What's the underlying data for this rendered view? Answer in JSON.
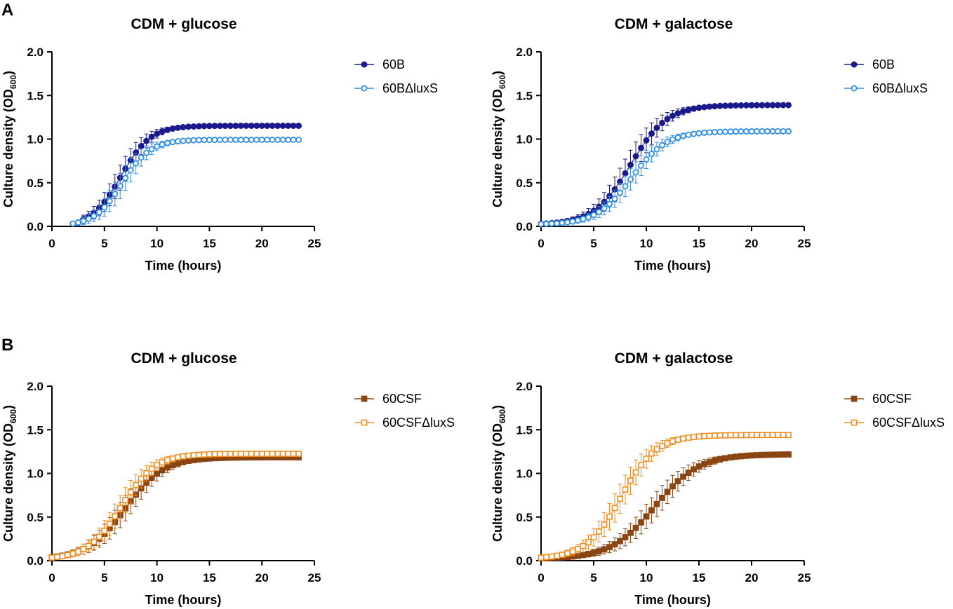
{
  "panel_letters": [
    "A",
    "B"
  ],
  "chart_data": [
    {
      "type": "line",
      "panel": "A",
      "title": "CDM + glucose",
      "xlabel": "Time (hours)",
      "ylabel": "Culture density (OD",
      "ylabel_sub": "600",
      "ylabel_close": ")",
      "xlim": [
        0,
        25
      ],
      "ylim": [
        0,
        2.0
      ],
      "xticks": [
        0,
        5,
        10,
        15,
        20,
        25
      ],
      "yticks": [
        0.0,
        0.5,
        1.0,
        1.5,
        2.0
      ],
      "xtick_labels": [
        "0",
        "5",
        "10",
        "15",
        "20",
        "25"
      ],
      "ytick_labels": [
        "0.0",
        "0.5",
        "1.0",
        "1.5",
        "2.0"
      ],
      "legend": "right",
      "series": [
        {
          "name": "60B",
          "color": "#1a1a8c",
          "marker": "circle",
          "filled": true,
          "t0": 3.0,
          "dt": 0.5,
          "L": 1.15,
          "k": 0.72,
          "m": 6.6,
          "r": 0.003,
          "err": 0.3
        },
        {
          "name": "60BΔluxS",
          "color": "#2e8ee6",
          "marker": "circle",
          "filled": false,
          "t0": 2.0,
          "dt": 0.5,
          "L": 0.99,
          "k": 0.75,
          "m": 6.7,
          "r": 0.003,
          "err": 0.3
        }
      ]
    },
    {
      "type": "line",
      "panel": "A",
      "title": "CDM + galactose",
      "xlabel": "Time (hours)",
      "ylabel": "Culture density (OD",
      "ylabel_sub": "600",
      "ylabel_close": ")",
      "xlim": [
        0,
        25
      ],
      "ylim": [
        0,
        2.0
      ],
      "xticks": [
        0,
        5,
        10,
        15,
        20,
        25
      ],
      "yticks": [
        0.0,
        0.5,
        1.0,
        1.5,
        2.0
      ],
      "xtick_labels": [
        "0",
        "5",
        "10",
        "15",
        "20",
        "25"
      ],
      "ytick_labels": [
        "0.0",
        "0.5",
        "1.0",
        "1.5",
        "2.0"
      ],
      "legend": "right",
      "series": [
        {
          "name": "60B",
          "color": "#1a1a8c",
          "marker": "circle",
          "filled": true,
          "t0": 0.0,
          "dt": 0.5,
          "L": 1.37,
          "k": 0.58,
          "m": 8.5,
          "r": 0.02,
          "err": 0.35
        },
        {
          "name": "60BΔluxS",
          "color": "#2e8ee6",
          "marker": "circle",
          "filled": false,
          "t0": 0.0,
          "dt": 0.5,
          "L": 1.07,
          "k": 0.6,
          "m": 8.6,
          "r": 0.02,
          "err": 0.25
        }
      ]
    },
    {
      "type": "line",
      "panel": "B",
      "title": "CDM + glucose",
      "xlabel": "Time (hours)",
      "ylabel": "Culture density (OD",
      "ylabel_sub": "600",
      "ylabel_close": ")",
      "xlim": [
        0,
        25
      ],
      "ylim": [
        0,
        2.0
      ],
      "xticks": [
        0,
        5,
        10,
        15,
        20,
        25
      ],
      "yticks": [
        0.0,
        0.5,
        1.0,
        1.5,
        2.0
      ],
      "xtick_labels": [
        "0",
        "5",
        "10",
        "15",
        "20",
        "25"
      ],
      "ytick_labels": [
        "0.0",
        "0.5",
        "1.0",
        "1.5",
        "2.0"
      ],
      "legend": "right",
      "series": [
        {
          "name": "60CSF",
          "color": "#8b4513",
          "marker": "square",
          "filled": true,
          "t0": 0.0,
          "dt": 0.5,
          "L": 1.17,
          "k": 0.55,
          "m": 7.0,
          "r": 0.015,
          "err": 0.3
        },
        {
          "name": "60CSFΔluxS",
          "color": "#f08c1e",
          "marker": "square",
          "filled": false,
          "t0": 0.0,
          "dt": 0.5,
          "L": 1.21,
          "k": 0.62,
          "m": 6.6,
          "r": 0.015,
          "err": 0.3
        }
      ]
    },
    {
      "type": "line",
      "panel": "B",
      "title": "CDM + galactose",
      "xlabel": "Time (hours)",
      "ylabel": "Culture density (OD",
      "ylabel_sub": "600",
      "ylabel_close": ")",
      "xlim": [
        0,
        25
      ],
      "ylim": [
        0,
        2.0
      ],
      "xticks": [
        0,
        5,
        10,
        15,
        20,
        25
      ],
      "yticks": [
        0.0,
        0.5,
        1.0,
        1.5,
        2.0
      ],
      "xtick_labels": [
        "0",
        "5",
        "10",
        "15",
        "20",
        "25"
      ],
      "ytick_labels": [
        "0.0",
        "0.5",
        "1.0",
        "1.5",
        "2.0"
      ],
      "legend": "right",
      "series": [
        {
          "name": "60CSF",
          "color": "#8b4513",
          "marker": "square",
          "filled": true,
          "t0": 0.0,
          "dt": 0.5,
          "L": 1.2,
          "k": 0.48,
          "m": 10.8,
          "r": 0.02,
          "err": 0.3
        },
        {
          "name": "60CSFΔluxS",
          "color": "#f08c1e",
          "marker": "square",
          "filled": false,
          "t0": 0.0,
          "dt": 0.5,
          "L": 1.42,
          "k": 0.6,
          "m": 7.6,
          "r": 0.02,
          "err": 0.35
        }
      ]
    }
  ]
}
